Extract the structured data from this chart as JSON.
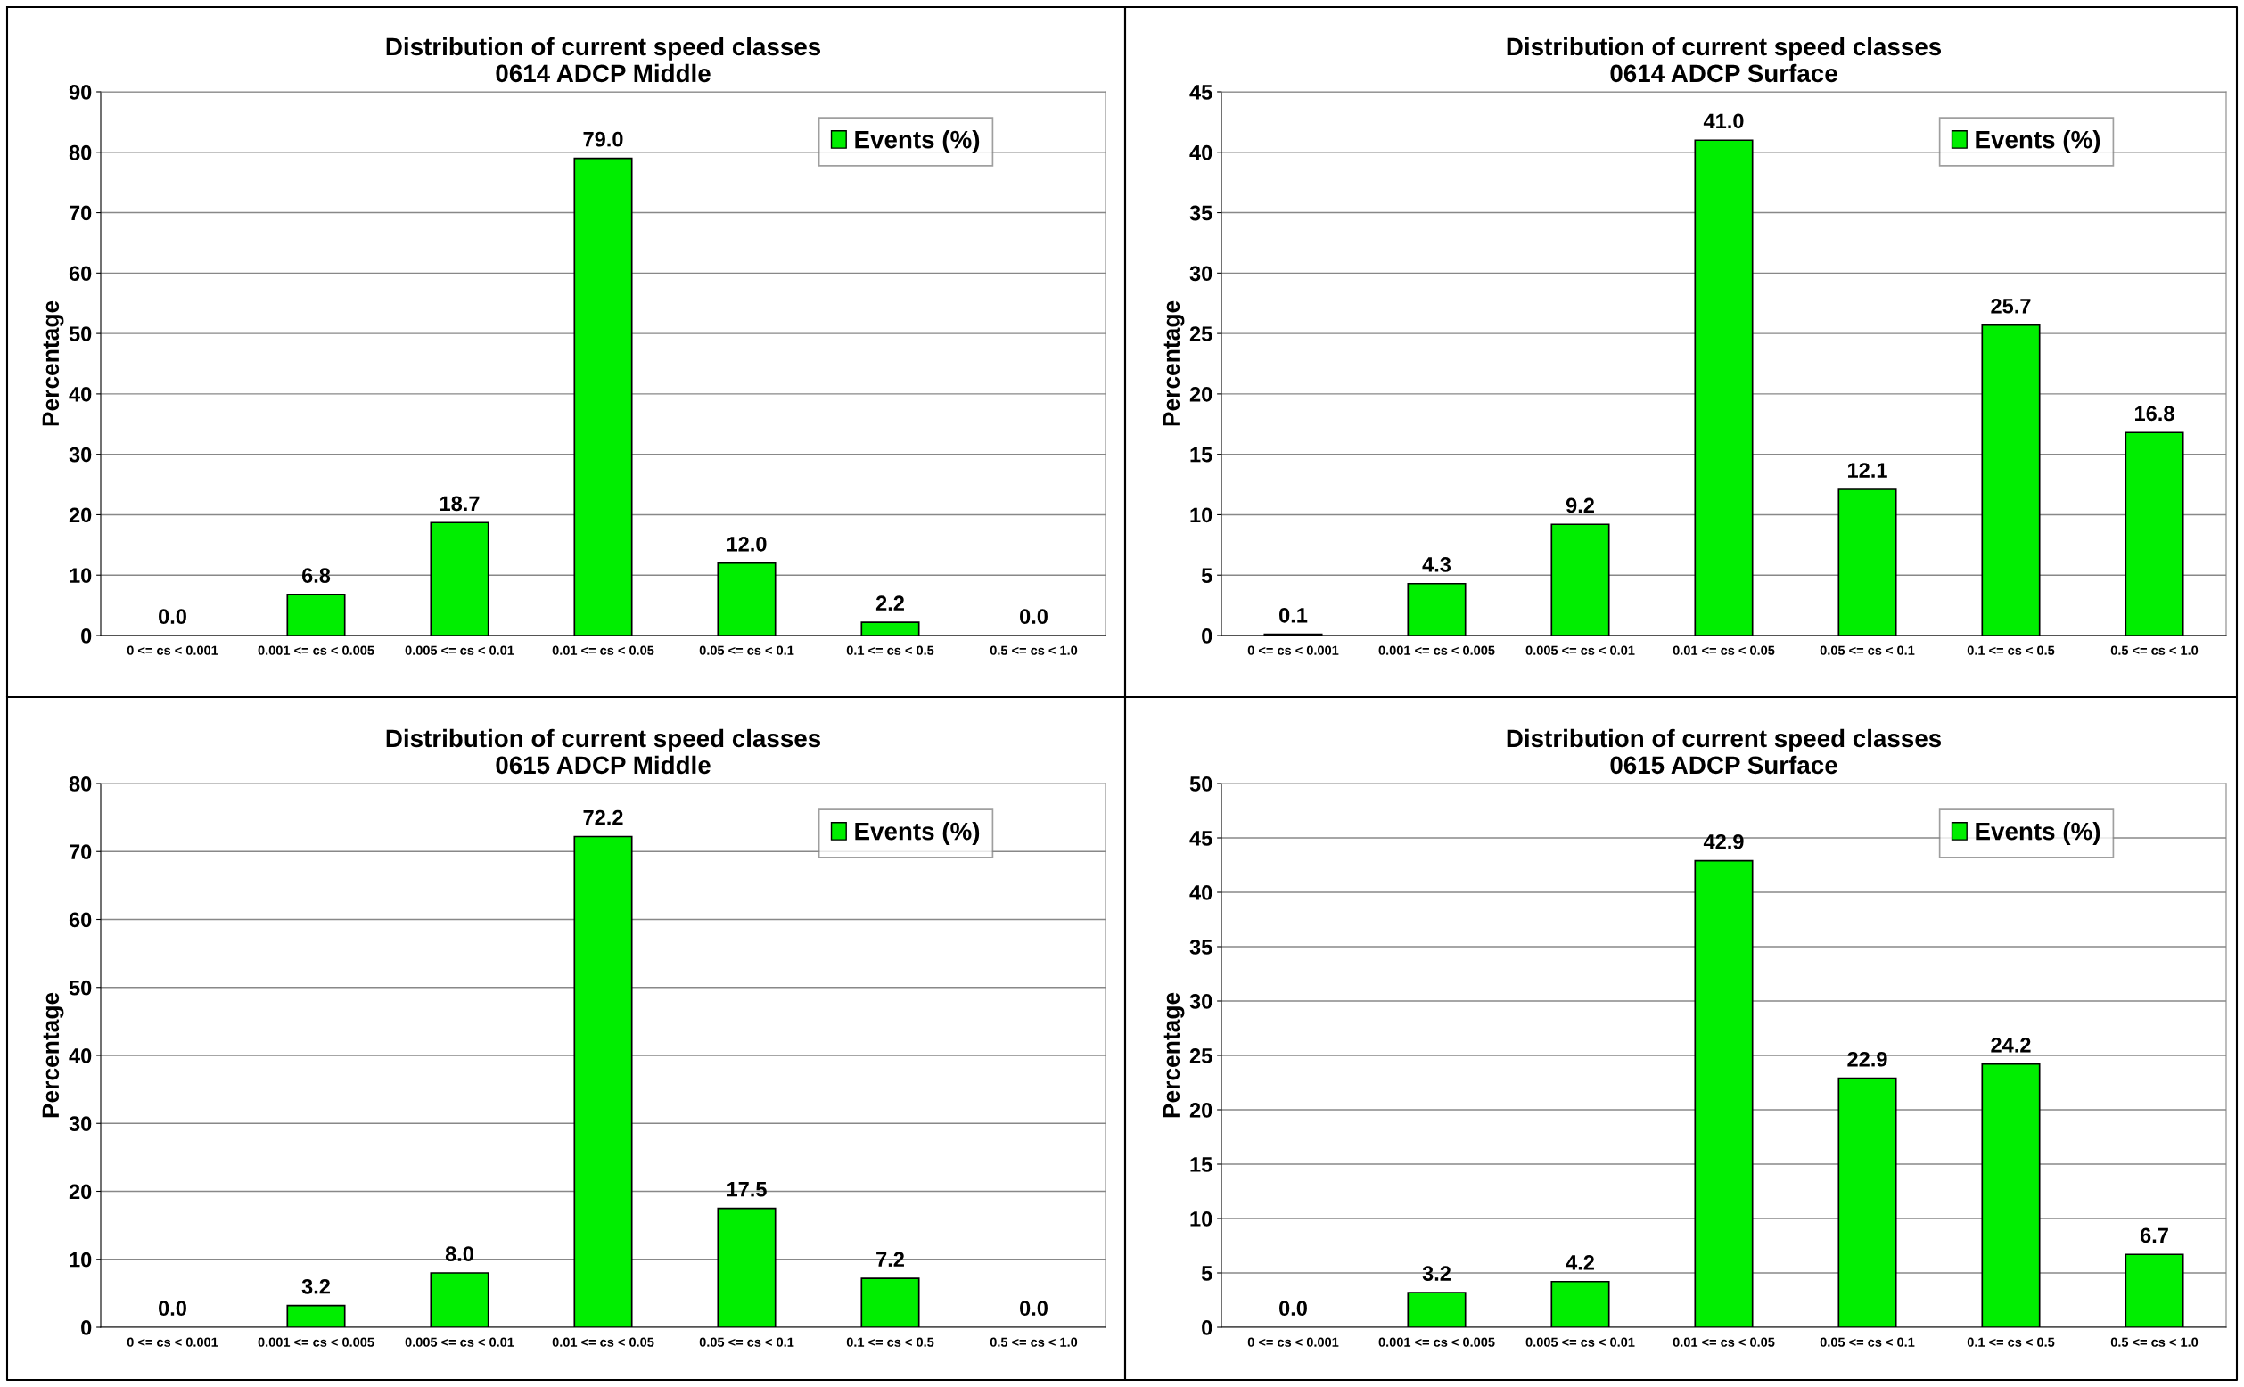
{
  "chart_data": [
    {
      "type": "bar",
      "title": "Distribution of current speed classes\n0614 ADCP Middle",
      "ylabel": "Percentage",
      "categories": [
        "0 <= cs < 0.001",
        "0.001 <= cs < 0.005",
        "0.005 <= cs < 0.01",
        "0.01 <= cs < 0.05",
        "0.05 <= cs < 0.1",
        "0.1 <= cs < 0.5",
        "0.5 <= cs < 1.0"
      ],
      "series": [
        {
          "name": "Events (%)",
          "color": "#00ee00",
          "values": [
            0.0,
            6.8,
            18.7,
            79.0,
            12.0,
            2.2,
            0.0
          ]
        }
      ],
      "value_labels": [
        "0.0",
        "6.8",
        "18.7",
        "79.0",
        "12.0",
        "2.2",
        "0.0"
      ],
      "ylim": [
        0,
        90
      ],
      "yticks": [
        0,
        10,
        20,
        30,
        40,
        50,
        60,
        70,
        80,
        90
      ],
      "grid": "y",
      "legend": "top right"
    },
    {
      "type": "bar",
      "title": "Distribution of current speed classes\n0614 ADCP Surface",
      "ylabel": "Percentage",
      "categories": [
        "0 <= cs < 0.001",
        "0.001 <= cs < 0.005",
        "0.005 <= cs < 0.01",
        "0.01 <= cs < 0.05",
        "0.05 <= cs < 0.1",
        "0.1 <= cs < 0.5",
        "0.5 <= cs < 1.0"
      ],
      "series": [
        {
          "name": "Events (%)",
          "color": "#00ee00",
          "values": [
            0.1,
            4.3,
            9.2,
            41.0,
            12.1,
            25.7,
            16.8
          ]
        }
      ],
      "value_labels": [
        "0.1",
        "4.3",
        "9.2",
        "41.0",
        "12.1",
        "25.7",
        "16.8"
      ],
      "ylim": [
        0,
        45
      ],
      "yticks": [
        0,
        5,
        10,
        15,
        20,
        25,
        30,
        35,
        40,
        45
      ],
      "grid": "y",
      "legend": "top right"
    },
    {
      "type": "bar",
      "title": "Distribution of current speed classes\n0615 ADCP Middle",
      "ylabel": "Percentage",
      "categories": [
        "0 <= cs < 0.001",
        "0.001 <= cs < 0.005",
        "0.005 <= cs < 0.01",
        "0.01 <= cs < 0.05",
        "0.05 <= cs < 0.1",
        "0.1 <= cs < 0.5",
        "0.5 <= cs < 1.0"
      ],
      "series": [
        {
          "name": "Events (%)",
          "color": "#00ee00",
          "values": [
            0.0,
            3.2,
            8.0,
            72.2,
            17.5,
            7.2,
            0.0
          ]
        }
      ],
      "value_labels": [
        "0.0",
        "3.2",
        "8.0",
        "72.2",
        "17.5",
        "7.2",
        "0.0"
      ],
      "ylim": [
        0,
        80
      ],
      "yticks": [
        0,
        10,
        20,
        30,
        40,
        50,
        60,
        70,
        80
      ],
      "grid": "y",
      "legend": "top right"
    },
    {
      "type": "bar",
      "title": "Distribution of current speed classes\n0615 ADCP Surface",
      "ylabel": "Percentage",
      "categories": [
        "0 <= cs < 0.001",
        "0.001 <= cs < 0.005",
        "0.005 <= cs < 0.01",
        "0.01 <= cs < 0.05",
        "0.05 <= cs < 0.1",
        "0.1 <= cs < 0.5",
        "0.5 <= cs < 1.0"
      ],
      "series": [
        {
          "name": "Events (%)",
          "color": "#00ee00",
          "values": [
            0.0,
            3.2,
            4.2,
            42.9,
            22.9,
            24.2,
            6.7
          ]
        }
      ],
      "value_labels": [
        "0.0",
        "3.2",
        "4.2",
        "42.9",
        "22.9",
        "24.2",
        "6.7"
      ],
      "ylim": [
        0,
        50
      ],
      "yticks": [
        0,
        5,
        10,
        15,
        20,
        25,
        30,
        35,
        40,
        45,
        50
      ],
      "grid": "y",
      "legend": "top right"
    }
  ]
}
